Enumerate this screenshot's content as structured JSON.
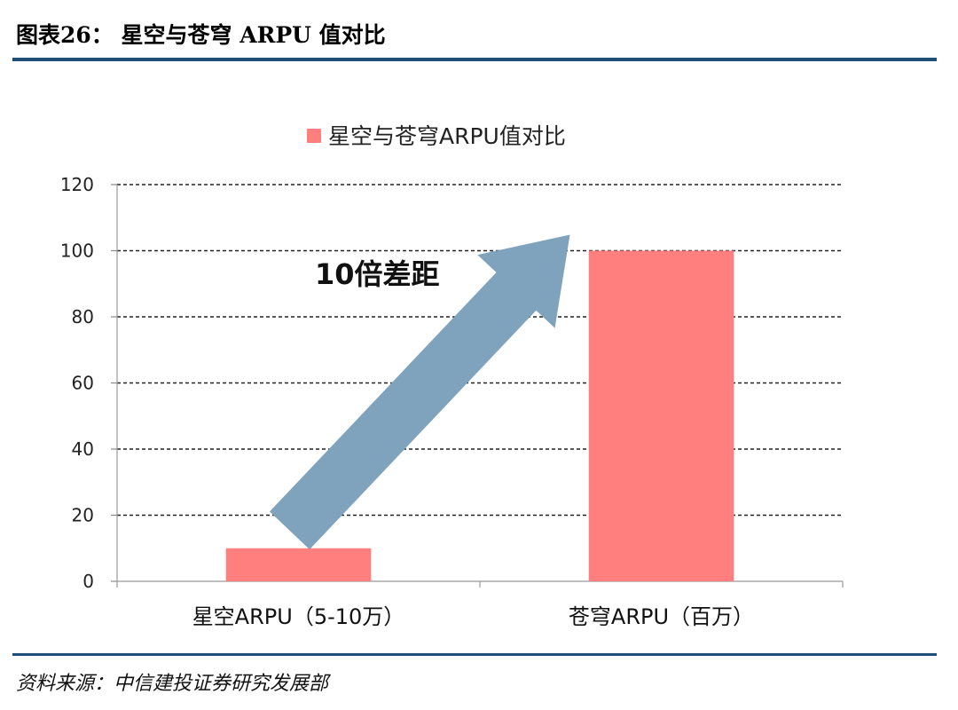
{
  "figure": {
    "title": "图表26： 星空与苍穹 ARPU 值对比",
    "source": "资料来源：中信建投证券研究发展部"
  },
  "chart_data": {
    "type": "bar",
    "categories": [
      "星空ARPU（5-10万）",
      "苍穹ARPU（百万）"
    ],
    "series": [
      {
        "name": "星空与苍穹ARPU值对比",
        "values": [
          10,
          100
        ],
        "color": "#ff7f7f"
      }
    ],
    "ylim": [
      0,
      120
    ],
    "yticks": [
      0,
      20,
      40,
      60,
      80,
      100,
      120
    ],
    "grid": true,
    "grid_style": "dashed",
    "legend_position": "top",
    "annotation": {
      "text": "10倍差距",
      "arrow_color": "#7fa3bd"
    }
  }
}
